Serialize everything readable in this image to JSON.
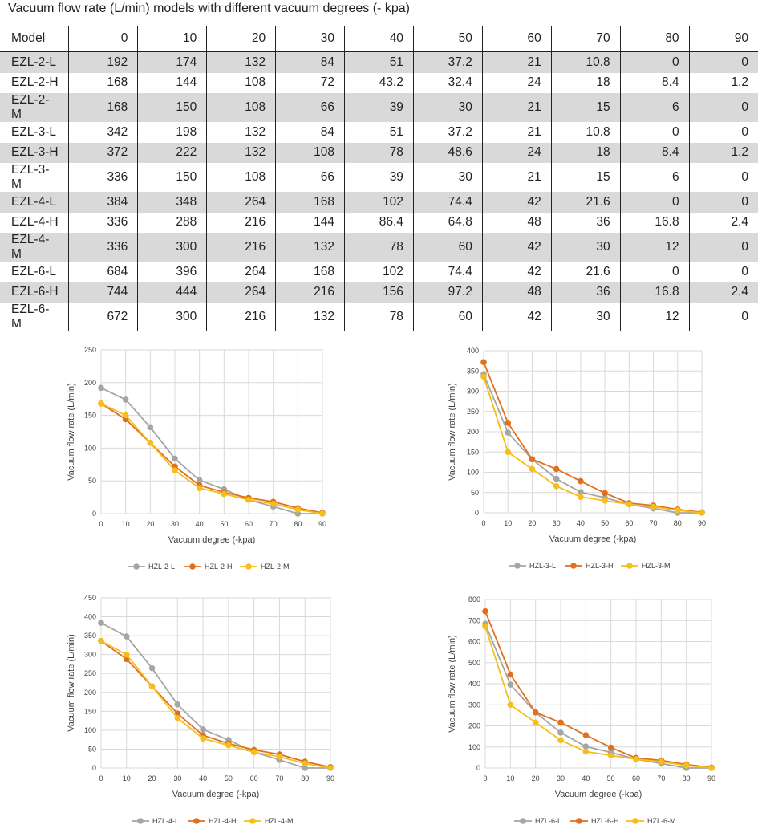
{
  "table": {
    "title": "Vacuum flow rate (L/min) models with different vacuum degrees (- kpa)",
    "columns": [
      "Model",
      "0",
      "10",
      "20",
      "30",
      "40",
      "50",
      "60",
      "70",
      "80",
      "90"
    ],
    "rows": [
      [
        "EZL-2-L",
        "192",
        "174",
        "132",
        "84",
        "51",
        "37.2",
        "21",
        "10.8",
        "0",
        "0"
      ],
      [
        "EZL-2-H",
        "168",
        "144",
        "108",
        "72",
        "43.2",
        "32.4",
        "24",
        "18",
        "8.4",
        "1.2"
      ],
      [
        "EZL-2-M",
        "168",
        "150",
        "108",
        "66",
        "39",
        "30",
        "21",
        "15",
        "6",
        "0"
      ],
      [
        "EZL-3-L",
        "342",
        "198",
        "132",
        "84",
        "51",
        "37.2",
        "21",
        "10.8",
        "0",
        "0"
      ],
      [
        "EZL-3-H",
        "372",
        "222",
        "132",
        "108",
        "78",
        "48.6",
        "24",
        "18",
        "8.4",
        "1.2"
      ],
      [
        "EZL-3-M",
        "336",
        "150",
        "108",
        "66",
        "39",
        "30",
        "21",
        "15",
        "6",
        "0"
      ],
      [
        "EZL-4-L",
        "384",
        "348",
        "264",
        "168",
        "102",
        "74.4",
        "42",
        "21.6",
        "0",
        "0"
      ],
      [
        "EZL-4-H",
        "336",
        "288",
        "216",
        "144",
        "86.4",
        "64.8",
        "48",
        "36",
        "16.8",
        "2.4"
      ],
      [
        "EZL-4-M",
        "336",
        "300",
        "216",
        "132",
        "78",
        "60",
        "42",
        "30",
        "12",
        "0"
      ],
      [
        "EZL-6-L",
        "684",
        "396",
        "264",
        "168",
        "102",
        "74.4",
        "42",
        "21.6",
        "0",
        "0"
      ],
      [
        "EZL-6-H",
        "744",
        "444",
        "264",
        "216",
        "156",
        "97.2",
        "48",
        "36",
        "16.8",
        "2.4"
      ],
      [
        "EZL-6-M",
        "672",
        "300",
        "216",
        "132",
        "78",
        "60",
        "42",
        "30",
        "12",
        "0"
      ]
    ]
  },
  "colors": {
    "L": "#a5a5a5",
    "H": "#e07020",
    "M": "#f5be1a",
    "grid": "#d9d9d9",
    "row_shade": "#d9d9d9"
  },
  "chart_data": [
    {
      "type": "line",
      "xlabel": "Vacuum degree (-kpa)",
      "ylabel": "Vacuum flow rate (L/min)",
      "x": [
        0,
        10,
        20,
        30,
        40,
        50,
        60,
        70,
        80,
        90
      ],
      "ylim": [
        0,
        250
      ],
      "yticks": [
        0,
        50,
        100,
        150,
        200,
        250
      ],
      "grid": true,
      "legend": "bottom",
      "series": [
        {
          "name": "HZL-2-L",
          "color": "#a5a5a5",
          "values": [
            192,
            174,
            132,
            84,
            51,
            37.2,
            21,
            10.8,
            0,
            0
          ]
        },
        {
          "name": "HZL-2-H",
          "color": "#e07020",
          "values": [
            168,
            144,
            108,
            72,
            43.2,
            32.4,
            24,
            18,
            8.4,
            1.2
          ]
        },
        {
          "name": "HZL-2-M",
          "color": "#f5be1a",
          "values": [
            168,
            150,
            108,
            66,
            39,
            30,
            21,
            15,
            6,
            0
          ]
        }
      ]
    },
    {
      "type": "line",
      "xlabel": "Vacuum degree (-kpa)",
      "ylabel": "Vacuum flow rate (L/min)",
      "x": [
        0,
        10,
        20,
        30,
        40,
        50,
        60,
        70,
        80,
        90
      ],
      "ylim": [
        0,
        400
      ],
      "yticks": [
        0,
        50,
        100,
        150,
        200,
        250,
        300,
        350,
        400
      ],
      "grid": true,
      "legend": "bottom",
      "series": [
        {
          "name": "HZL-3-L",
          "color": "#a5a5a5",
          "values": [
            342,
            198,
            132,
            84,
            51,
            37.2,
            21,
            10.8,
            0,
            0
          ]
        },
        {
          "name": "HZL-3-H",
          "color": "#e07020",
          "values": [
            372,
            222,
            132,
            108,
            78,
            48.6,
            24,
            18,
            8.4,
            1.2
          ]
        },
        {
          "name": "HZL-3-M",
          "color": "#f5be1a",
          "values": [
            336,
            150,
            108,
            66,
            39,
            30,
            21,
            15,
            6,
            0
          ]
        }
      ]
    },
    {
      "type": "line",
      "xlabel": "Vacuum degree (-kpa)",
      "ylabel": "Vacuum flow rate (L/min)",
      "x": [
        0,
        10,
        20,
        30,
        40,
        50,
        60,
        70,
        80,
        90
      ],
      "ylim": [
        0,
        450
      ],
      "yticks": [
        0,
        50,
        100,
        150,
        200,
        250,
        300,
        350,
        400,
        450
      ],
      "grid": true,
      "legend": "bottom",
      "series": [
        {
          "name": "HZL-4-L",
          "color": "#a5a5a5",
          "values": [
            384,
            348,
            264,
            168,
            102,
            74.4,
            42,
            21.6,
            0,
            0
          ]
        },
        {
          "name": "HZL-4-H",
          "color": "#e07020",
          "values": [
            336,
            288,
            216,
            144,
            86.4,
            64.8,
            48,
            36,
            16.8,
            2.4
          ]
        },
        {
          "name": "HZL-4-M",
          "color": "#f5be1a",
          "values": [
            336,
            300,
            216,
            132,
            78,
            60,
            42,
            30,
            12,
            0
          ]
        }
      ]
    },
    {
      "type": "line",
      "xlabel": "Vacuum degree (-kpa)",
      "ylabel": "Vacuum flow rate (L/min)",
      "x": [
        0,
        10,
        20,
        30,
        40,
        50,
        60,
        70,
        80,
        90
      ],
      "ylim": [
        0,
        800
      ],
      "yticks": [
        0,
        100,
        200,
        300,
        400,
        500,
        600,
        700,
        800
      ],
      "grid": true,
      "legend": "bottom",
      "series": [
        {
          "name": "HZL-6-L",
          "color": "#a5a5a5",
          "values": [
            684,
            396,
            264,
            168,
            102,
            74.4,
            42,
            21.6,
            0,
            0
          ]
        },
        {
          "name": "HZL-6-H",
          "color": "#e07020",
          "values": [
            744,
            444,
            264,
            216,
            156,
            97.2,
            48,
            36,
            16.8,
            2.4
          ]
        },
        {
          "name": "HZL-6-M",
          "color": "#f5be1a",
          "values": [
            672,
            300,
            216,
            132,
            78,
            60,
            42,
            30,
            12,
            0
          ]
        }
      ]
    }
  ]
}
